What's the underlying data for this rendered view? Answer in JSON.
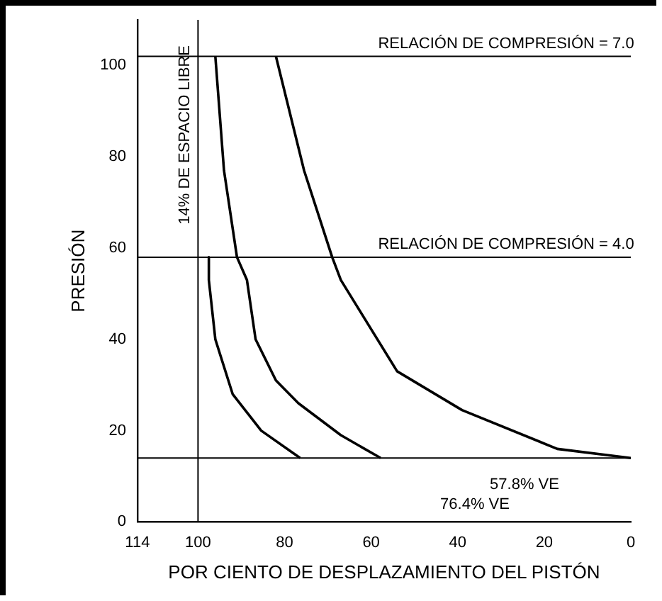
{
  "chart_data": {
    "type": "line",
    "xlabel": "POR CIENTO DE DESPLAZAMIENTO DEL PISTÓN",
    "ylabel": "PRESIÓN",
    "xlim": [
      114,
      0
    ],
    "xticks": [
      114,
      100,
      80,
      60,
      40,
      20,
      0
    ],
    "ylim": [
      0,
      110
    ],
    "yticks": [
      0,
      20,
      40,
      60,
      80,
      100
    ],
    "series": [
      {
        "color": "#000000",
        "x": [
          0,
          17,
          39,
          54,
          67,
          69,
          75.5,
          82
        ],
        "values": [
          14,
          16,
          24.5,
          33,
          53,
          58,
          77,
          102
        ]
      },
      {
        "color": "#000000",
        "x": [
          96,
          94,
          91,
          88.7,
          86.7,
          82,
          76.8,
          67,
          57.8
        ],
        "values": [
          102,
          77,
          58,
          53,
          40,
          31,
          26,
          19,
          14
        ]
      },
      {
        "color": "#000000",
        "x": [
          97.5,
          97.5,
          96,
          92,
          85.4,
          76.4
        ],
        "values": [
          58,
          53,
          40,
          28,
          20,
          14
        ]
      }
    ],
    "ref_lines": [
      {
        "axis": "y",
        "value": 102
      },
      {
        "axis": "y",
        "value": 58
      },
      {
        "axis": "y",
        "value": 14
      },
      {
        "axis": "x",
        "value": 100,
        "label": "14% DE ESPACIO LIBRE"
      }
    ],
    "annotations": [
      "RELACIÓN DE COMPRESIÓN = 7.0",
      "RELACIÓN DE COMPRESIÓN = 4.0",
      "57.8% VE",
      "76.4% VE"
    ],
    "grid": false,
    "legend": false,
    "marker": "none",
    "line_style": "solid"
  }
}
